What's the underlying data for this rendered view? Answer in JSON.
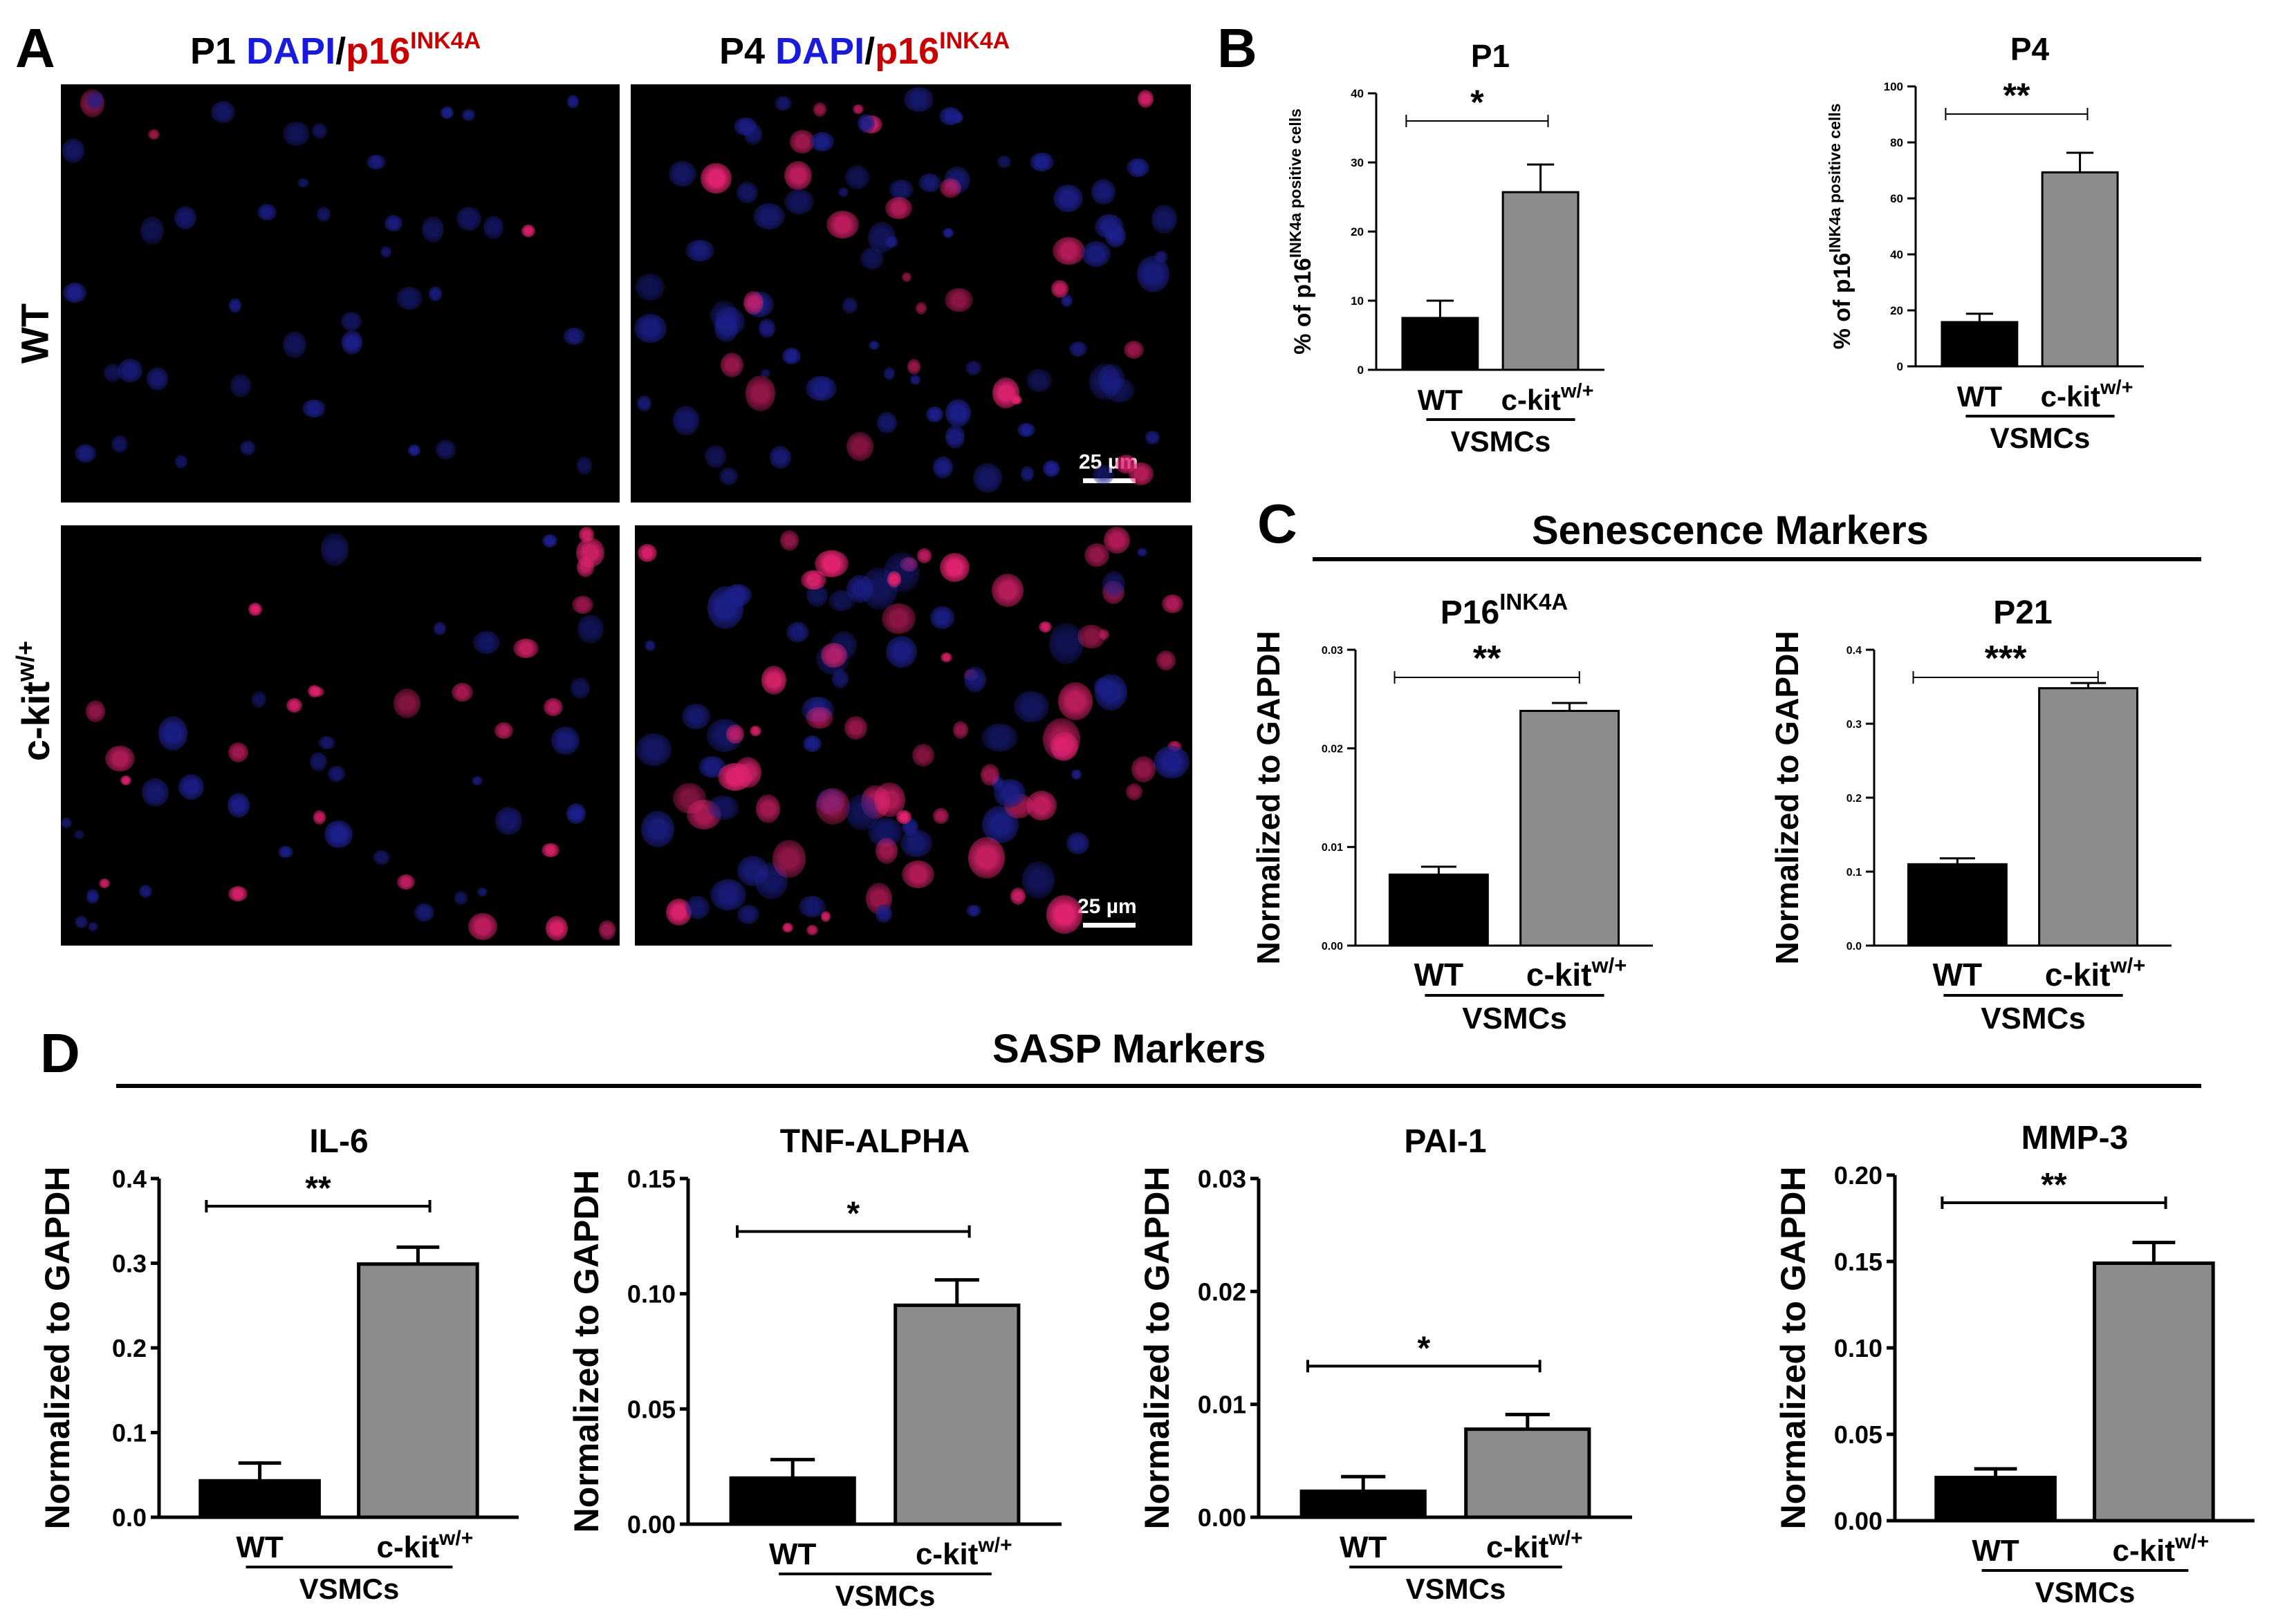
{
  "panels": {
    "A": {
      "letter": "A",
      "col_headers": [
        {
          "prefix": "P1 ",
          "dapi": "DAPI",
          "slash": "/",
          "marker": "p16",
          "sup": "INK4A"
        },
        {
          "prefix": "P4 ",
          "dapi": "DAPI",
          "slash": "/",
          "marker": "p16",
          "sup": "INK4A"
        }
      ],
      "row_labels": [
        {
          "text": "WT",
          "sup": ""
        },
        {
          "text": "c-kit",
          "sup": "w/+"
        }
      ],
      "scale_bar_label": "25 µm"
    },
    "B": {
      "letter": "B"
    },
    "C": {
      "letter": "C",
      "section_title": "Senescence Markers"
    },
    "D": {
      "letter": "D",
      "section_title": "SASP Markers"
    }
  },
  "colors": {
    "wt_bar": "#000000",
    "ckit_bar": "#8c8c8c",
    "dapi": "#1a1adc",
    "p16": "#c80000",
    "nucleus_blue": "#1c1f8a",
    "nucleus_pink": "#e0226e"
  },
  "chart_data": [
    {
      "type": "bar",
      "panel": "B",
      "title": "P1",
      "ylabel": "% of p16^INK4a positive cells",
      "categories": [
        "WT",
        "c-kit^w/+"
      ],
      "group_label": "VSMCs",
      "values": [
        7.5,
        25.7
      ],
      "errors": [
        2.5,
        4.0
      ],
      "ylim": [
        0,
        40
      ],
      "yticks": [
        0,
        10,
        20,
        30,
        40
      ],
      "tick_labels": [
        "0",
        "10",
        "20",
        "30",
        "40"
      ],
      "significance": "*"
    },
    {
      "type": "bar",
      "panel": "B",
      "title": "P4",
      "ylabel": "% of p16^INK4a positive cells",
      "categories": [
        "WT",
        "c-kit^w/+"
      ],
      "group_label": "VSMCs",
      "values": [
        15.8,
        69.3
      ],
      "errors": [
        3.0,
        7.0
      ],
      "ylim": [
        0,
        100
      ],
      "yticks": [
        0,
        20,
        40,
        60,
        80,
        100
      ],
      "tick_labels": [
        "0",
        "20",
        "40",
        "60",
        "80",
        "100"
      ],
      "significance": "**"
    },
    {
      "type": "bar",
      "panel": "C",
      "title": "P16^INK4A",
      "ylabel": "Normalized to GAPDH",
      "categories": [
        "WT",
        "c-kit^w/+"
      ],
      "group_label": "VSMCs",
      "values": [
        0.0072,
        0.0238
      ],
      "errors": [
        0.0008,
        0.0008
      ],
      "ylim": [
        0,
        0.03
      ],
      "yticks": [
        0,
        0.01,
        0.02,
        0.03
      ],
      "tick_labels": [
        "0.00",
        "0.01",
        "0.02",
        "0.03"
      ],
      "significance": "**"
    },
    {
      "type": "bar",
      "panel": "C",
      "title": "P21",
      "ylabel": "Normalized to GAPDH",
      "categories": [
        "WT",
        "c-kit^w/+"
      ],
      "group_label": "VSMCs",
      "values": [
        0.11,
        0.348
      ],
      "errors": [
        0.008,
        0.007
      ],
      "ylim": [
        0,
        0.4
      ],
      "yticks": [
        0,
        0.1,
        0.2,
        0.3,
        0.4
      ],
      "tick_labels": [
        "0.0",
        "0.1",
        "0.2",
        "0.3",
        "0.4"
      ],
      "significance": "***"
    },
    {
      "type": "bar",
      "panel": "D",
      "title": "IL-6",
      "ylabel": "Normalized to GAPDH",
      "categories": [
        "WT",
        "c-kit^w/+"
      ],
      "group_label": "VSMCs",
      "values": [
        0.043,
        0.299
      ],
      "errors": [
        0.021,
        0.02
      ],
      "ylim": [
        0,
        0.4
      ],
      "yticks": [
        0,
        0.1,
        0.2,
        0.3,
        0.4
      ],
      "tick_labels": [
        "0.0",
        "0.1",
        "0.2",
        "0.3",
        "0.4"
      ],
      "significance": "**"
    },
    {
      "type": "bar",
      "panel": "D",
      "title": "TNF-ALPHA",
      "ylabel": "Normalized to GAPDH",
      "categories": [
        "WT",
        "c-kit^w/+"
      ],
      "group_label": "VSMCs",
      "values": [
        0.02,
        0.095
      ],
      "errors": [
        0.008,
        0.011
      ],
      "ylim": [
        0,
        0.15
      ],
      "yticks": [
        0,
        0.05,
        0.1,
        0.15
      ],
      "tick_labels": [
        "0.00",
        "0.05",
        "0.10",
        "0.15"
      ],
      "significance": "*"
    },
    {
      "type": "bar",
      "panel": "D",
      "title": "PAI-1",
      "ylabel": "Normalized to GAPDH",
      "categories": [
        "WT",
        "c-kit^w/+"
      ],
      "group_label": "VSMCs",
      "values": [
        0.0023,
        0.0078
      ],
      "errors": [
        0.0013,
        0.0013
      ],
      "ylim": [
        0,
        0.03
      ],
      "yticks": [
        0,
        0.01,
        0.02,
        0.03
      ],
      "tick_labels": [
        "0.00",
        "0.01",
        "0.02",
        "0.03"
      ],
      "significance": "*"
    },
    {
      "type": "bar",
      "panel": "D",
      "title": "MMP-3",
      "ylabel": "Normalized to GAPDH",
      "categories": [
        "WT",
        "c-kit^w/+"
      ],
      "group_label": "VSMCs",
      "values": [
        0.025,
        0.149
      ],
      "errors": [
        0.005,
        0.012
      ],
      "ylim": [
        0,
        0.2
      ],
      "yticks": [
        0,
        0.05,
        0.1,
        0.15,
        0.2
      ],
      "tick_labels": [
        "0.00",
        "0.05",
        "0.10",
        "0.15",
        "0.20"
      ],
      "significance": "**"
    }
  ]
}
